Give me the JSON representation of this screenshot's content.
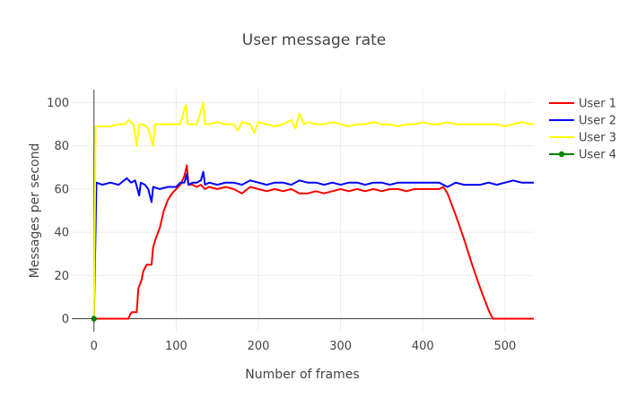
{
  "chart_data": {
    "type": "line",
    "title": "User message rate",
    "xlabel": "Number of frames",
    "ylabel": "Messages per second",
    "xlim": [
      -27,
      535
    ],
    "ylim": [
      -6,
      106
    ],
    "x_ticks": [
      0,
      100,
      200,
      300,
      400,
      500
    ],
    "y_ticks": [
      0,
      20,
      40,
      60,
      80,
      100
    ],
    "grid": true,
    "legend_position": "top-right",
    "series": [
      {
        "name": "User 1",
        "color": "#ff0000",
        "mode": "lines",
        "points": [
          [
            0,
            0
          ],
          [
            42,
            0
          ],
          [
            44,
            2
          ],
          [
            46,
            3
          ],
          [
            52,
            3
          ],
          [
            54,
            14
          ],
          [
            58,
            18
          ],
          [
            60,
            22
          ],
          [
            64,
            25
          ],
          [
            70,
            25
          ],
          [
            72,
            33
          ],
          [
            75,
            37
          ],
          [
            80,
            42
          ],
          [
            85,
            50
          ],
          [
            90,
            55
          ],
          [
            95,
            58
          ],
          [
            100,
            60
          ],
          [
            105,
            62
          ],
          [
            110,
            66
          ],
          [
            113,
            71
          ],
          [
            115,
            62
          ],
          [
            120,
            62
          ],
          [
            125,
            61
          ],
          [
            130,
            62
          ],
          [
            135,
            60
          ],
          [
            140,
            61
          ],
          [
            150,
            60
          ],
          [
            160,
            61
          ],
          [
            170,
            60
          ],
          [
            180,
            58
          ],
          [
            190,
            61
          ],
          [
            200,
            60
          ],
          [
            210,
            59
          ],
          [
            220,
            60
          ],
          [
            230,
            59
          ],
          [
            240,
            60
          ],
          [
            250,
            58
          ],
          [
            260,
            58
          ],
          [
            270,
            59
          ],
          [
            280,
            58
          ],
          [
            290,
            59
          ],
          [
            300,
            60
          ],
          [
            310,
            59
          ],
          [
            320,
            60
          ],
          [
            330,
            59
          ],
          [
            340,
            60
          ],
          [
            350,
            59
          ],
          [
            360,
            60
          ],
          [
            370,
            60
          ],
          [
            380,
            59
          ],
          [
            390,
            60
          ],
          [
            400,
            60
          ],
          [
            410,
            60
          ],
          [
            420,
            60
          ],
          [
            425,
            61
          ],
          [
            430,
            58
          ],
          [
            440,
            48
          ],
          [
            450,
            37
          ],
          [
            460,
            25
          ],
          [
            470,
            14
          ],
          [
            480,
            4
          ],
          [
            485,
            0
          ],
          [
            535,
            0
          ]
        ]
      },
      {
        "name": "User 2",
        "color": "#0000ff",
        "mode": "lines",
        "points": [
          [
            0,
            0
          ],
          [
            3,
            63
          ],
          [
            10,
            62
          ],
          [
            20,
            63
          ],
          [
            30,
            62
          ],
          [
            40,
            65
          ],
          [
            45,
            63
          ],
          [
            50,
            64
          ],
          [
            53,
            60
          ],
          [
            55,
            57
          ],
          [
            57,
            63
          ],
          [
            62,
            62
          ],
          [
            66,
            60
          ],
          [
            70,
            54
          ],
          [
            72,
            61
          ],
          [
            80,
            60
          ],
          [
            90,
            61
          ],
          [
            100,
            61
          ],
          [
            105,
            63
          ],
          [
            110,
            63
          ],
          [
            113,
            67
          ],
          [
            115,
            62
          ],
          [
            120,
            63
          ],
          [
            125,
            63
          ],
          [
            130,
            64
          ],
          [
            133,
            68
          ],
          [
            135,
            62
          ],
          [
            140,
            63
          ],
          [
            150,
            62
          ],
          [
            160,
            63
          ],
          [
            170,
            63
          ],
          [
            180,
            62
          ],
          [
            190,
            64
          ],
          [
            200,
            63
          ],
          [
            210,
            62
          ],
          [
            220,
            63
          ],
          [
            230,
            63
          ],
          [
            240,
            62
          ],
          [
            250,
            64
          ],
          [
            260,
            63
          ],
          [
            270,
            63
          ],
          [
            280,
            62
          ],
          [
            290,
            63
          ],
          [
            300,
            62
          ],
          [
            310,
            63
          ],
          [
            320,
            63
          ],
          [
            330,
            62
          ],
          [
            340,
            63
          ],
          [
            350,
            63
          ],
          [
            360,
            62
          ],
          [
            370,
            63
          ],
          [
            380,
            63
          ],
          [
            390,
            63
          ],
          [
            400,
            63
          ],
          [
            410,
            63
          ],
          [
            420,
            63
          ],
          [
            430,
            61
          ],
          [
            440,
            63
          ],
          [
            450,
            62
          ],
          [
            460,
            62
          ],
          [
            470,
            62
          ],
          [
            480,
            63
          ],
          [
            490,
            62
          ],
          [
            500,
            63
          ],
          [
            510,
            64
          ],
          [
            520,
            63
          ],
          [
            535,
            63
          ]
        ]
      },
      {
        "name": "User 3",
        "color": "#ffff00",
        "mode": "lines",
        "points": [
          [
            0,
            0
          ],
          [
            2,
            89
          ],
          [
            10,
            89
          ],
          [
            20,
            89
          ],
          [
            30,
            90
          ],
          [
            38,
            90
          ],
          [
            42,
            92
          ],
          [
            48,
            90
          ],
          [
            52,
            80
          ],
          [
            55,
            90
          ],
          [
            60,
            90
          ],
          [
            66,
            88
          ],
          [
            72,
            80
          ],
          [
            74,
            90
          ],
          [
            80,
            90
          ],
          [
            90,
            90
          ],
          [
            100,
            90
          ],
          [
            105,
            90
          ],
          [
            110,
            97
          ],
          [
            112,
            99
          ],
          [
            114,
            90
          ],
          [
            120,
            90
          ],
          [
            125,
            90
          ],
          [
            130,
            96
          ],
          [
            133,
            100
          ],
          [
            135,
            90
          ],
          [
            140,
            90
          ],
          [
            150,
            91
          ],
          [
            160,
            90
          ],
          [
            170,
            90
          ],
          [
            175,
            87
          ],
          [
            180,
            91
          ],
          [
            190,
            90
          ],
          [
            195,
            86
          ],
          [
            200,
            91
          ],
          [
            210,
            90
          ],
          [
            220,
            89
          ],
          [
            230,
            90
          ],
          [
            240,
            92
          ],
          [
            245,
            88
          ],
          [
            250,
            95
          ],
          [
            255,
            90
          ],
          [
            260,
            91
          ],
          [
            270,
            90
          ],
          [
            280,
            90
          ],
          [
            290,
            91
          ],
          [
            300,
            90
          ],
          [
            310,
            89
          ],
          [
            320,
            90
          ],
          [
            330,
            90
          ],
          [
            340,
            91
          ],
          [
            350,
            90
          ],
          [
            360,
            90
          ],
          [
            370,
            89
          ],
          [
            380,
            90
          ],
          [
            390,
            90
          ],
          [
            400,
            91
          ],
          [
            410,
            90
          ],
          [
            420,
            90
          ],
          [
            430,
            91
          ],
          [
            440,
            90
          ],
          [
            450,
            90
          ],
          [
            460,
            90
          ],
          [
            470,
            90
          ],
          [
            480,
            90
          ],
          [
            490,
            90
          ],
          [
            500,
            89
          ],
          [
            510,
            90
          ],
          [
            520,
            91
          ],
          [
            530,
            90
          ],
          [
            535,
            90
          ]
        ]
      },
      {
        "name": "User 4",
        "color": "#008000",
        "mode": "lines+markers",
        "points": [
          [
            0,
            0
          ]
        ]
      }
    ]
  }
}
